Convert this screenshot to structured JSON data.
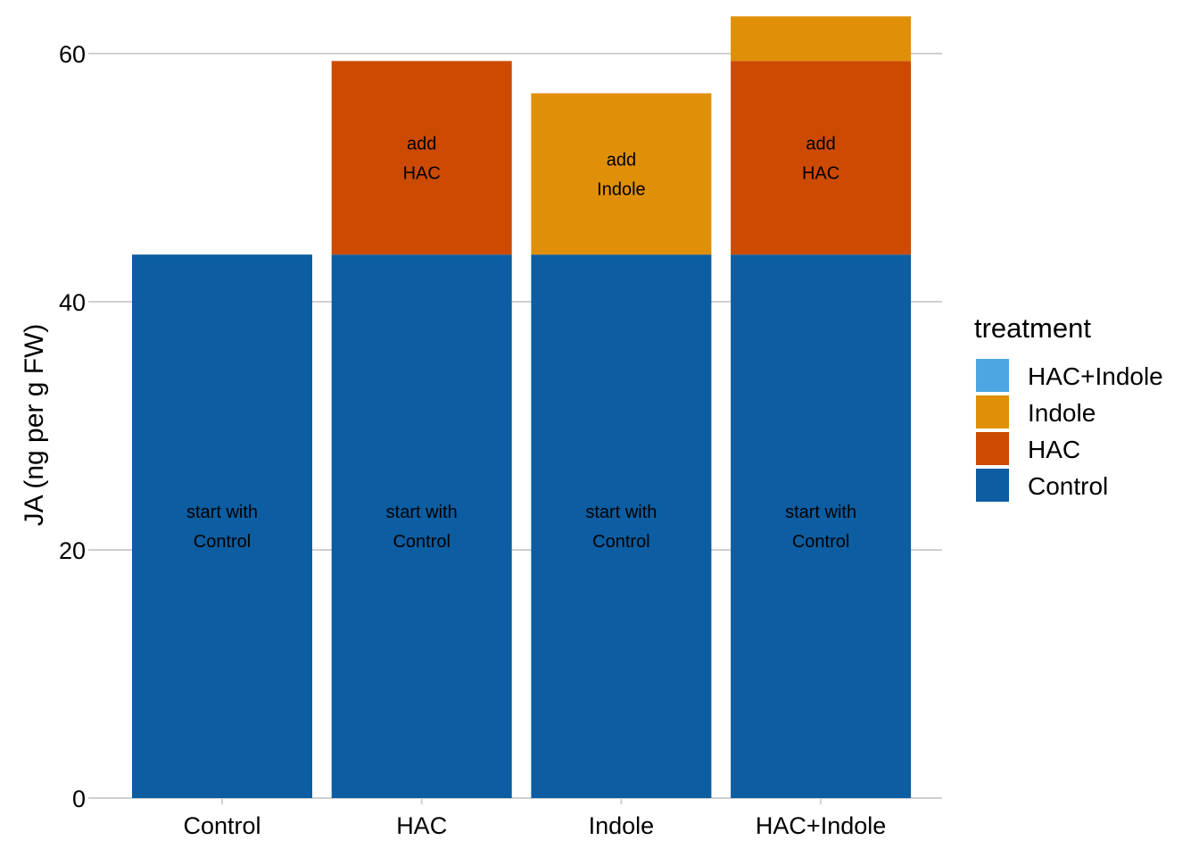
{
  "chart_data": {
    "type": "bar",
    "stacked": true,
    "categories": [
      "Control",
      "HAC",
      "Indole",
      "HAC+Indole"
    ],
    "ylabel": "JA (ng per g FW)",
    "ylim": [
      0,
      63
    ],
    "yticks": [
      0,
      20,
      40,
      60
    ],
    "grid": "horizontal",
    "legend": {
      "title": "treatment",
      "placement": "right",
      "entries": [
        {
          "name": "HAC+Indole",
          "color": "#4CA6E3"
        },
        {
          "name": "Indole",
          "color": "#E08F08"
        },
        {
          "name": "HAC",
          "color": "#CC4A02"
        },
        {
          "name": "Control",
          "color": "#0C5DA1"
        }
      ]
    },
    "segments": [
      {
        "category": "Control",
        "treatment": "Control",
        "base": 0,
        "value": 43.8,
        "label": [
          "start with",
          "Control"
        ]
      },
      {
        "category": "HAC",
        "treatment": "Control",
        "base": 0,
        "value": 43.8,
        "label": [
          "start with",
          "Control"
        ]
      },
      {
        "category": "HAC",
        "treatment": "HAC",
        "base": 43.8,
        "value": 15.6,
        "label": [
          "add",
          "HAC"
        ]
      },
      {
        "category": "Indole",
        "treatment": "Control",
        "base": 0,
        "value": 43.8,
        "label": [
          "start with",
          "Control"
        ]
      },
      {
        "category": "Indole",
        "treatment": "Indole",
        "base": 43.8,
        "value": 13.0,
        "label": [
          "add",
          "Indole"
        ]
      },
      {
        "category": "HAC+Indole",
        "treatment": "Control",
        "base": 0,
        "value": 43.8,
        "label": [
          "start with",
          "Control"
        ]
      },
      {
        "category": "HAC+Indole",
        "treatment": "HAC",
        "base": 43.8,
        "value": 15.6,
        "label": [
          "add",
          "HAC"
        ]
      },
      {
        "category": "HAC+Indole",
        "treatment": "Indole",
        "base": 59.4,
        "value": 3.6,
        "label": []
      }
    ]
  }
}
